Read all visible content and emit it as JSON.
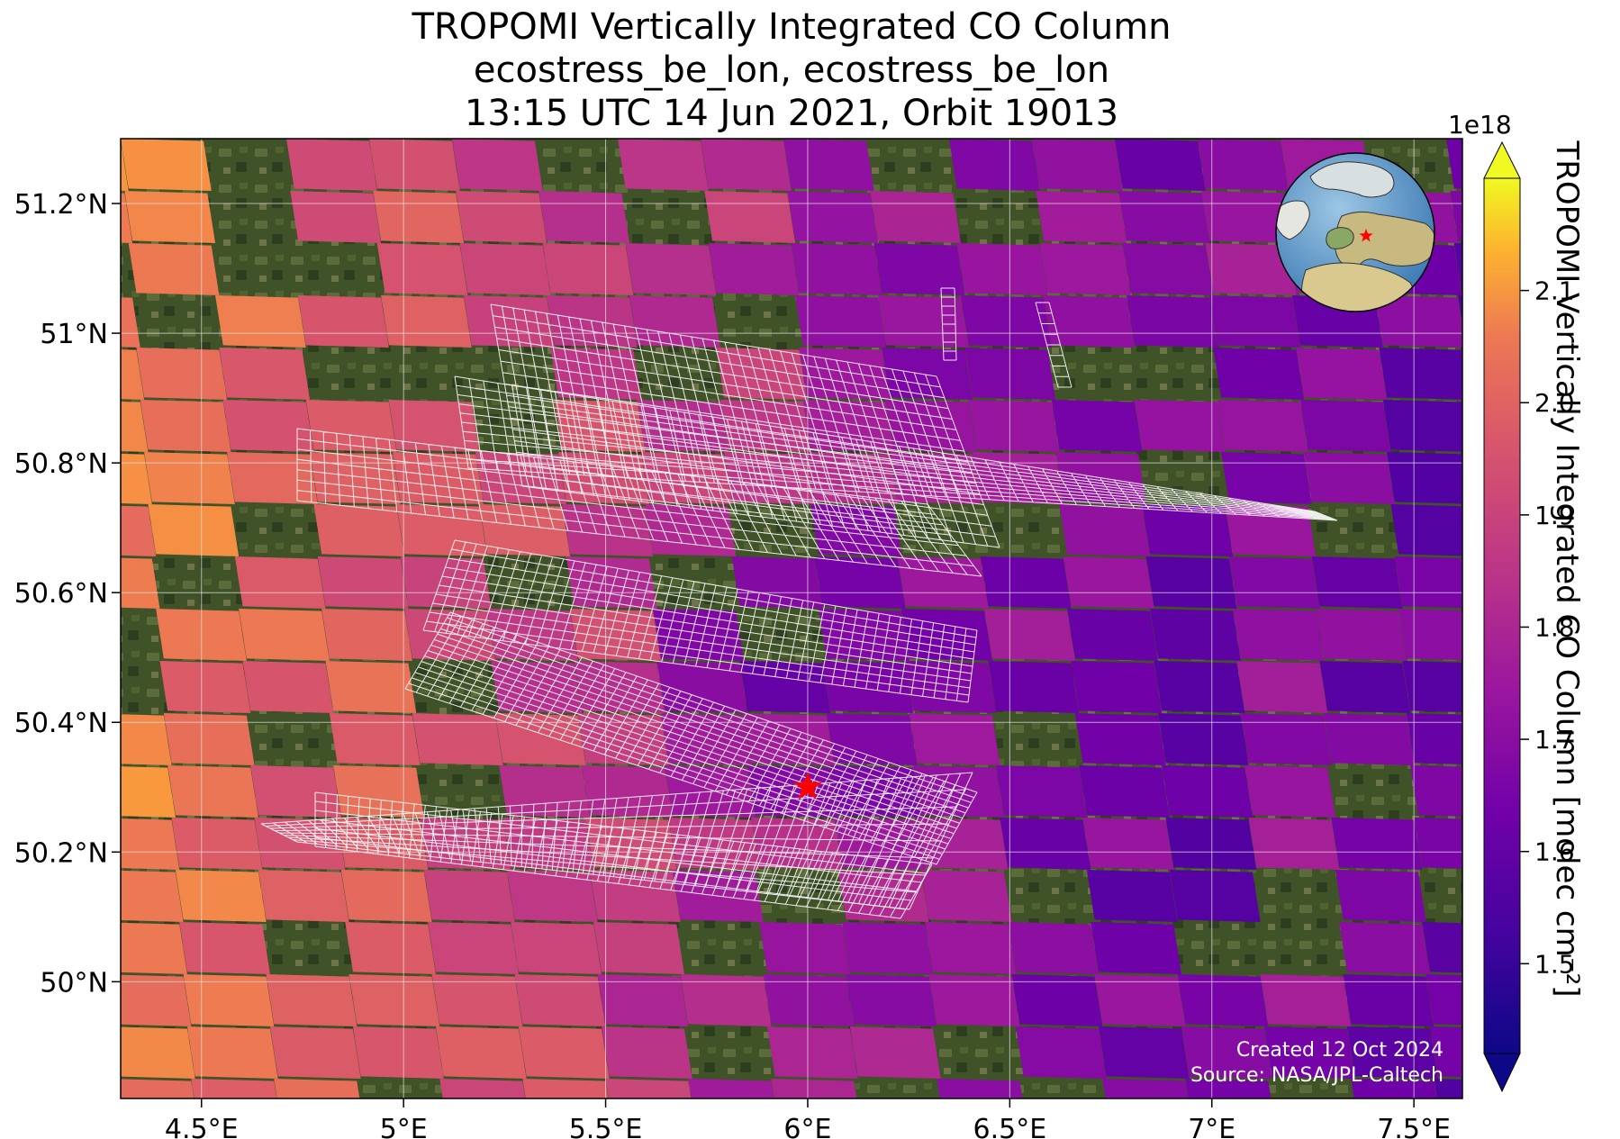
{
  "title": {
    "line1": "TROPOMI Vertically Integrated CO Column",
    "line2": "ecostress_be_lon, ecostress_be_lon",
    "line3": "13:15 UTC 14 Jun 2021, Orbit 19013"
  },
  "map": {
    "extent": {
      "lon": [
        4.3,
        7.62
      ],
      "lat": [
        49.82,
        51.3
      ]
    },
    "lon_ticks": [
      {
        "value": 4.5,
        "label": "4.5°E"
      },
      {
        "value": 5.0,
        "label": "5°E"
      },
      {
        "value": 5.5,
        "label": "5.5°E"
      },
      {
        "value": 6.0,
        "label": "6°E"
      },
      {
        "value": 6.5,
        "label": "6.5°E"
      },
      {
        "value": 7.0,
        "label": "7°E"
      },
      {
        "value": 7.5,
        "label": "7.5°E"
      }
    ],
    "lat_ticks": [
      {
        "value": 51.2,
        "label": "51.2°N"
      },
      {
        "value": 51.0,
        "label": "51°N"
      },
      {
        "value": 50.8,
        "label": "50.8°N"
      },
      {
        "value": 50.6,
        "label": "50.6°N"
      },
      {
        "value": 50.4,
        "label": "50.4°N"
      },
      {
        "value": 50.2,
        "label": "50.2°N"
      },
      {
        "value": 50.0,
        "label": "50°N"
      }
    ],
    "target": {
      "lon": 6.0,
      "lat": 50.3,
      "color": "#ff0000"
    },
    "base_color": "#3f5228",
    "grid_color": "#e6e6e6",
    "overlay_color": "#ffffff"
  },
  "colorbar": {
    "label": "TROPOMI Vertically Integrated CO Column [molec cm⁻²]",
    "exponent": "1e18",
    "vmin": 1.42,
    "vmax": 2.2,
    "extend": "both",
    "ticks": [
      1.5,
      1.6,
      1.7,
      1.8,
      1.9,
      2.0,
      2.1
    ],
    "colormap": "plasma"
  },
  "credits": {
    "created": "Created 12 Oct 2024",
    "source": "Source: NASA/JPL-Caltech"
  }
}
